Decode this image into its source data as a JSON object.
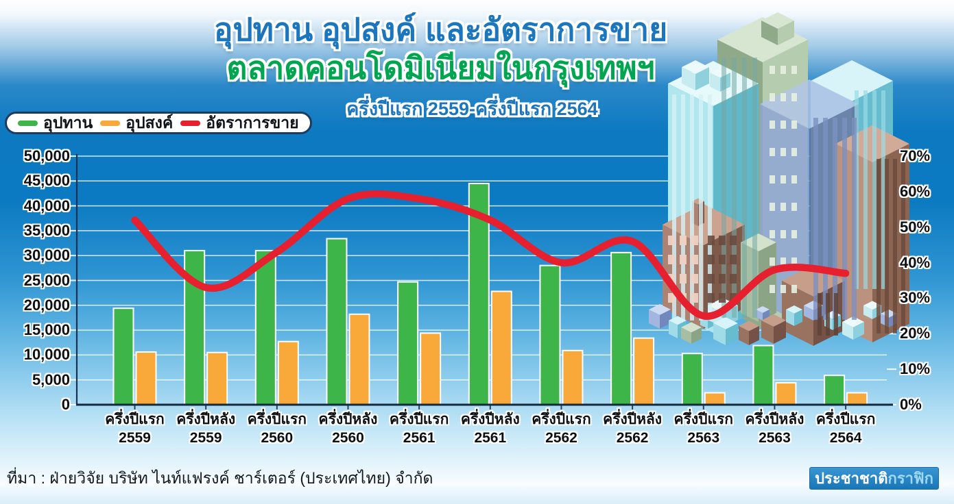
{
  "chart_data": {
    "type": "bar+line",
    "title": "อุปทาน อุปสงค์ และอัตราการขาย",
    "subtitle": "ตลาดคอนโดมิเนียมในกรุงเทพฯ",
    "period_label": "ครึ่งปีแรก 2559-ครึ่งปีแรก 2564",
    "categories": [
      {
        "period": "ครึ่งปีแรก",
        "year": "2559"
      },
      {
        "period": "ครึ่งปีหลัง",
        "year": "2559"
      },
      {
        "period": "ครึ่งปีแรก",
        "year": "2560"
      },
      {
        "period": "ครึ่งปีหลัง",
        "year": "2560"
      },
      {
        "period": "ครึ่งปีแรก",
        "year": "2561"
      },
      {
        "period": "ครึ่งปีหลัง",
        "year": "2561"
      },
      {
        "period": "ครึ่งปีแรก",
        "year": "2562"
      },
      {
        "period": "ครึ่งปีหลัง",
        "year": "2562"
      },
      {
        "period": "ครึ่งปีแรก",
        "year": "2563"
      },
      {
        "period": "ครึ่งปีหลัง",
        "year": "2563"
      },
      {
        "period": "ครึ่งปีแรก",
        "year": "2564"
      }
    ],
    "series": [
      {
        "name": "อุปทาน",
        "type": "bar",
        "axis": "left",
        "color": "#3eb549",
        "values": [
          19400,
          31000,
          31000,
          33400,
          24700,
          44500,
          28000,
          30600,
          10300,
          11900,
          5900
        ]
      },
      {
        "name": "อุปสงค์",
        "type": "bar",
        "axis": "left",
        "color": "#f9a83a",
        "values": [
          10600,
          10500,
          12700,
          18200,
          14400,
          22800,
          10900,
          13400,
          2400,
          4400,
          2400
        ]
      },
      {
        "name": "อัตราการขาย",
        "type": "line",
        "axis": "right",
        "color": "#e6202e",
        "unit": "%",
        "values": [
          52,
          33,
          43,
          58,
          58,
          52,
          40,
          46,
          25,
          38,
          37
        ]
      }
    ],
    "left_axis": {
      "min": 0,
      "max": 50000,
      "step": 5000,
      "tick_labels": [
        "0",
        "5,000",
        "10,000",
        "15,000",
        "20,000",
        "25,000",
        "30,000",
        "35,000",
        "40,000",
        "45,000",
        "50,000"
      ]
    },
    "right_axis": {
      "min": 0,
      "max": 70,
      "step": 10,
      "tick_labels": [
        "0%",
        "10%",
        "20%",
        "30%",
        "40%",
        "50%",
        "60%",
        "70%"
      ]
    },
    "grid": true,
    "legend_position": "top-left"
  },
  "source": "ที่มา : ฝ่ายวิจัย บริษัท ไนท์แฟรงค์ ชาร์เตอร์ (ประเทศไทย) จำกัด",
  "logo": {
    "part1": "ประชาชาติ",
    "part2": "กราฟิก"
  }
}
